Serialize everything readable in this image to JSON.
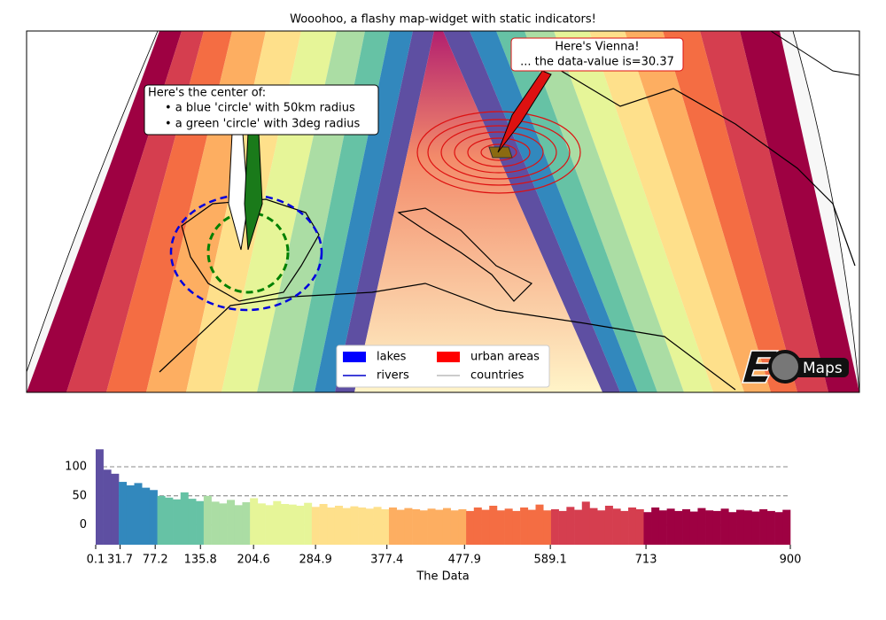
{
  "title": "Wooohoo, a flashy map-widget with static indicators!",
  "map": {
    "annotations": [
      {
        "lines": [
          "Here's the center of:",
          "• a blue 'circle' with 50km radius",
          "• a green 'circle' with 3deg radius"
        ]
      },
      {
        "lines": [
          "Here's Vienna!",
          "... the data-value is=30.37"
        ]
      }
    ],
    "legend": [
      "lakes",
      "rivers",
      "urban areas",
      "countries"
    ],
    "logo_text": "Maps"
  },
  "chart_data": {
    "type": "histogram",
    "bins": [
      0.1,
      10,
      20,
      30,
      40,
      50,
      60,
      70,
      80,
      90,
      100,
      110,
      120,
      130,
      140,
      150,
      160,
      170,
      180,
      190,
      200,
      210,
      220,
      230,
      240,
      250,
      260,
      270,
      280,
      290,
      300,
      310,
      320,
      330,
      340,
      350,
      360,
      370,
      380,
      390,
      400,
      410,
      420,
      430,
      440,
      450,
      460,
      470,
      480,
      490,
      500,
      510,
      520,
      530,
      540,
      550,
      560,
      570,
      580,
      590,
      600,
      610,
      620,
      630,
      640,
      650,
      660,
      670,
      680,
      690,
      700,
      710,
      720,
      730,
      740,
      750,
      760,
      770,
      780,
      790,
      800,
      810,
      820,
      830,
      840,
      850,
      860,
      870,
      880,
      890,
      900
    ],
    "values": [
      130,
      95,
      88,
      74,
      68,
      72,
      64,
      60,
      50,
      47,
      44,
      56,
      45,
      41,
      50,
      40,
      37,
      43,
      34,
      39,
      46,
      37,
      34,
      41,
      36,
      35,
      33,
      38,
      31,
      36,
      30,
      33,
      29,
      32,
      30,
      28,
      31,
      27,
      30,
      26,
      29,
      27,
      25,
      28,
      26,
      29,
      25,
      27,
      24,
      30,
      26,
      33,
      25,
      28,
      24,
      30,
      26,
      35,
      25,
      27,
      24,
      31,
      26,
      40,
      29,
      25,
      33,
      28,
      24,
      30,
      27,
      22,
      30,
      25,
      28,
      24,
      27,
      23,
      29,
      25,
      24,
      28,
      22,
      26,
      25,
      23,
      27,
      24,
      22,
      26
    ],
    "class_colors": [
      "#5e4fa2",
      "#3288bd",
      "#66c2a5",
      "#abdda4",
      "#e6f598",
      "#fee08b",
      "#fdae61",
      "#f46d43",
      "#d53e4f",
      "#9e0142"
    ],
    "xlim": [
      0.1,
      900
    ],
    "ylim": [
      -34,
      135
    ],
    "xticks": [
      0.1,
      31.7,
      77.2,
      135.8,
      204.6,
      284.9,
      377.4,
      477.9,
      589.1,
      713,
      900
    ],
    "yticks": [
      0,
      50,
      100
    ],
    "xlabel": "The Data",
    "grid": true
  }
}
